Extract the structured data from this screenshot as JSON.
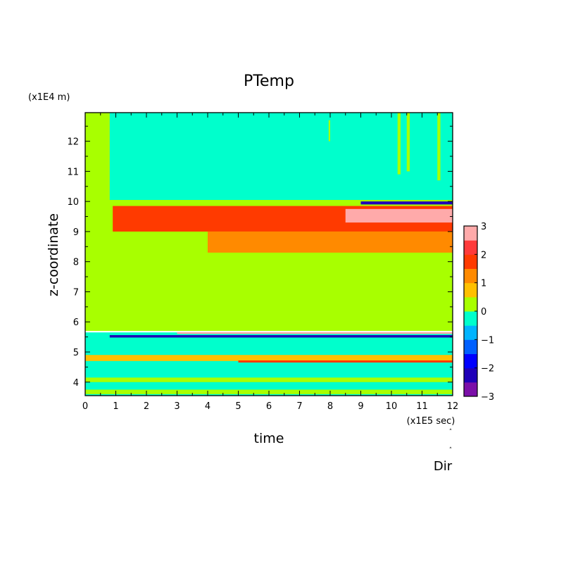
{
  "chart_data": {
    "type": "heatmap",
    "title": "PTemp",
    "xlabel": "time",
    "ylabel": "z-coordinate",
    "x_unit": "(x1E5 sec)",
    "y_unit": "(x1E4 m)",
    "footer": "Dir",
    "xlim": [
      0,
      12
    ],
    "ylim": [
      3.55,
      12.95
    ],
    "x_ticks": [
      0,
      1,
      2,
      3,
      4,
      5,
      6,
      7,
      8,
      9,
      10,
      11,
      12
    ],
    "y_ticks": [
      4,
      5,
      6,
      7,
      8,
      9,
      10,
      11,
      12
    ],
    "colorbar": {
      "levels": [
        -3,
        -2.5,
        -2,
        -1.5,
        -1,
        -0.5,
        0,
        0.5,
        1,
        1.5,
        2,
        2.5,
        3
      ],
      "tick_labels": [
        "-3",
        "-2",
        "-1",
        "0",
        "1",
        "2",
        "3"
      ],
      "colors": [
        "#7b0fa8",
        "#1f00b8",
        "#0000ff",
        "#0060ff",
        "#00b4ff",
        "#00ffcc",
        "#a8ff00",
        "#ffc000",
        "#ff8a00",
        "#ff3a00",
        "#ff3a3a",
        "#ffaaaa"
      ]
    },
    "regions": [
      {
        "x": [
          0,
          12
        ],
        "y": [
          5.7,
          12.95
        ],
        "value": 0.2
      },
      {
        "x": [
          0,
          12
        ],
        "y": [
          3.55,
          5.65
        ],
        "value": -0.2
      },
      {
        "x": [
          0,
          0.75
        ],
        "y": [
          10.9,
          12.95
        ],
        "value": 0.2
      },
      {
        "x": [
          0.8,
          12
        ],
        "y": [
          10.05,
          12.95
        ],
        "value": -0.2
      },
      {
        "x": [
          0.9,
          12
        ],
        "y": [
          9.0,
          9.85
        ],
        "value": 1.7
      },
      {
        "x": [
          4,
          12
        ],
        "y": [
          8.3,
          9.0
        ],
        "value": 1.2
      },
      {
        "x": [
          8.5,
          12
        ],
        "y": [
          9.3,
          9.75
        ],
        "value": 2.8
      },
      {
        "x": [
          9,
          12
        ],
        "y": [
          9.9,
          10.0
        ],
        "value": -2.2
      },
      {
        "x": [
          0.8,
          12
        ],
        "y": [
          5.48,
          5.56
        ],
        "value": -2.2
      },
      {
        "x": [
          3,
          12
        ],
        "y": [
          5.6,
          5.66
        ],
        "value": 3.0
      },
      {
        "x": [
          0,
          12
        ],
        "y": [
          4.7,
          4.9
        ],
        "value": 1.0
      },
      {
        "x": [
          5,
          12
        ],
        "y": [
          4.65,
          4.72
        ],
        "value": 2.0
      },
      {
        "x": [
          0,
          12
        ],
        "y": [
          4.0,
          4.15
        ],
        "value": 0.2
      },
      {
        "x": [
          0,
          12
        ],
        "y": [
          3.6,
          3.75
        ],
        "value": 0.2
      },
      {
        "x": [
          10.2,
          10.3
        ],
        "y": [
          10.9,
          12.95
        ],
        "value": 0.2
      },
      {
        "x": [
          10.5,
          10.6
        ],
        "y": [
          11.0,
          12.95
        ],
        "value": 0.2
      },
      {
        "x": [
          11.5,
          11.6
        ],
        "y": [
          10.7,
          12.95
        ],
        "value": 0.2
      },
      {
        "x": [
          7.95,
          8.0
        ],
        "y": [
          12.0,
          12.7
        ],
        "value": 0.2
      }
    ]
  }
}
